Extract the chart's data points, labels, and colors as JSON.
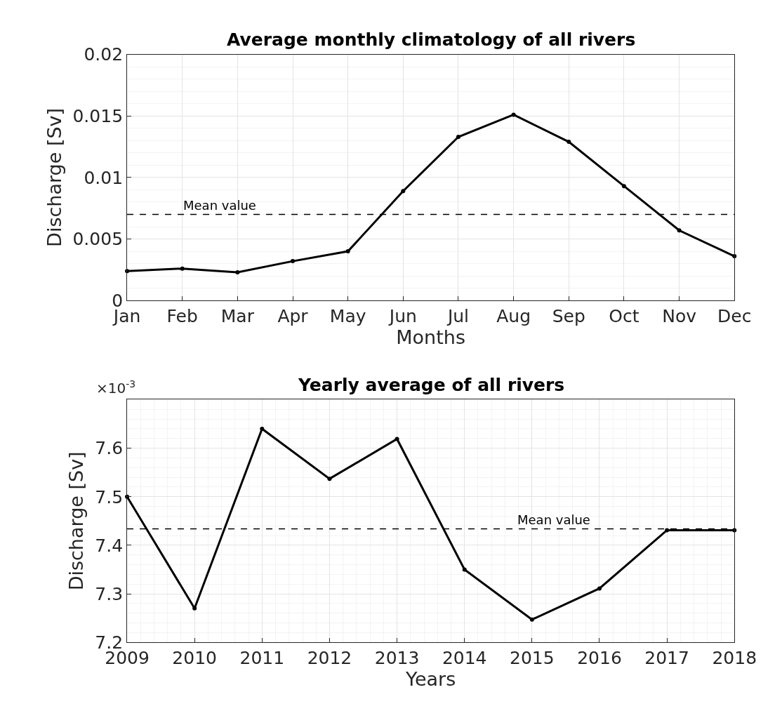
{
  "chart_data": [
    {
      "type": "line",
      "title": "Average monthly climatology of all rivers",
      "xlabel": "Months",
      "ylabel": "Discharge [Sv]",
      "categories": [
        "Jan",
        "Feb",
        "Mar",
        "Apr",
        "May",
        "Jun",
        "Jul",
        "Aug",
        "Sep",
        "Oct",
        "Nov",
        "Dec"
      ],
      "series": [
        {
          "color": "#000000",
          "values": [
            0.0024,
            0.0026,
            0.0023,
            0.0032,
            0.004,
            0.0089,
            0.0133,
            0.0151,
            0.0129,
            0.0093,
            0.0057,
            0.0036
          ]
        }
      ],
      "ylim": [
        0,
        0.02
      ],
      "yticks": [
        0,
        0.005,
        0.01,
        0.015,
        0.02
      ],
      "grid": true,
      "marker": "circle",
      "line_style": "solid",
      "ref_lines": [
        {
          "axis": "y",
          "value": 0.007,
          "label": "Mean value",
          "color": "#000000",
          "line_style": "dashed"
        }
      ]
    },
    {
      "type": "line",
      "title": "Yearly average of all rivers",
      "xlabel": "Years",
      "ylabel": "Discharge [Sv]",
      "x": [
        2009,
        2010,
        2011,
        2012,
        2013,
        2014,
        2015,
        2016,
        2017,
        2018
      ],
      "series": [
        {
          "color": "#000000",
          "values": [
            7.5,
            7.27,
            7.64,
            7.537,
            7.619,
            7.35,
            7.247,
            7.311,
            7.431,
            7.431
          ]
        }
      ],
      "xlim": [
        2009,
        2018
      ],
      "xticks": [
        2009,
        2010,
        2011,
        2012,
        2013,
        2014,
        2015,
        2016,
        2017,
        2018
      ],
      "ylim": [
        7.2,
        7.7
      ],
      "yticks": [
        {
          "value": 7.2,
          "label": "7.2"
        },
        {
          "value": 7.3,
          "label": "7.3"
        },
        {
          "value": 7.4,
          "label": "7.4"
        },
        {
          "value": 7.5,
          "label": "7.5"
        },
        {
          "value": 7.6,
          "label": "7.6"
        }
      ],
      "grid": true,
      "marker": "circle",
      "line_style": "solid",
      "annotations": [
        "×10$^{-3}$"
      ],
      "ref_lines": [
        {
          "axis": "y",
          "value": 7.434,
          "label": "Mean value",
          "color": "#000000",
          "line_style": "dashed"
        }
      ]
    }
  ]
}
